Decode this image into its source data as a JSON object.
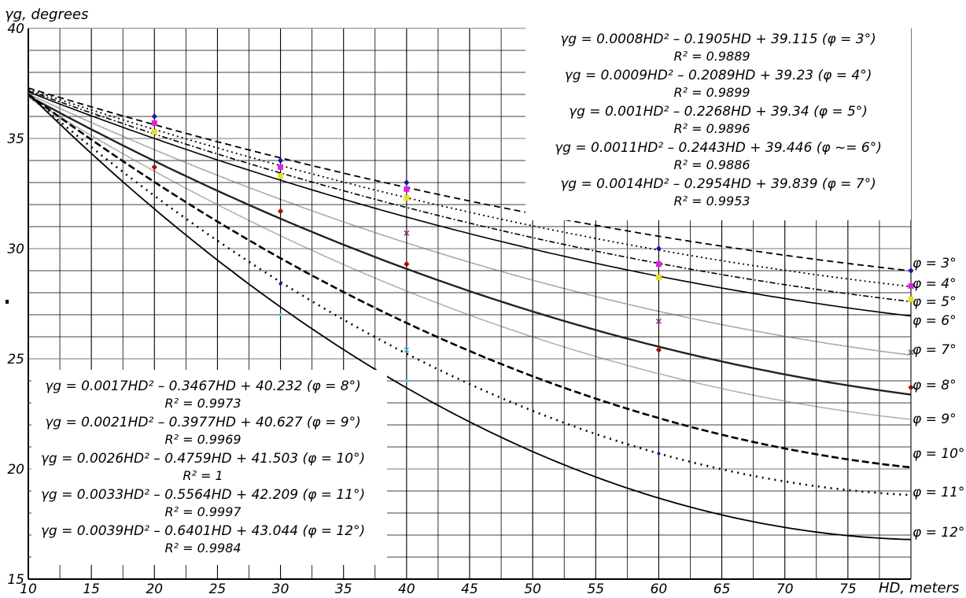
{
  "chart_data": {
    "type": "line",
    "ylabel": "γg, degrees",
    "xlabel": "HD, meters",
    "xlim": [
      10,
      80
    ],
    "ylim": [
      15,
      40
    ],
    "x_ticks": [
      "10",
      "15",
      "20",
      "25",
      "30",
      "35",
      "40",
      "45",
      "50",
      "55",
      "60",
      "65",
      "70",
      "75"
    ],
    "y_ticks": [
      "15",
      "20",
      "25",
      "30",
      "35",
      "40"
    ],
    "grid": true,
    "series": [
      {
        "name": "φ = 3°",
        "label": "φ = 3°",
        "a": 0.0008,
        "b": -0.1905,
        "c": 39.115,
        "dash": "8 5",
        "width": 1.8,
        "color": "#000000"
      },
      {
        "name": "φ = 4°",
        "label": "φ = 4°",
        "a": 0.0009,
        "b": -0.2089,
        "c": 39.23,
        "dash": "2 4",
        "width": 1.8,
        "color": "#000000"
      },
      {
        "name": "φ = 5°",
        "label": "φ = 5°",
        "a": 0.001,
        "b": -0.2268,
        "c": 39.34,
        "dash": "7 3 2 3",
        "width": 1.6,
        "color": "#000000"
      },
      {
        "name": "φ = 6°",
        "label": "φ = 6°",
        "a": 0.0011,
        "b": -0.2443,
        "c": 39.446,
        "dash": "",
        "width": 1.6,
        "color": "#000000"
      },
      {
        "name": "φ = 7°",
        "label": "φ = 7°",
        "a": 0.0014,
        "b": -0.2954,
        "c": 39.839,
        "dash": "1 1",
        "width": 1.6,
        "color": "#555555"
      },
      {
        "name": "φ = 8°",
        "label": "φ = 8°",
        "a": 0.0017,
        "b": -0.3467,
        "c": 40.232,
        "dash": "",
        "width": 2.4,
        "color": "#222222"
      },
      {
        "name": "φ = 9°",
        "label": "φ = 9°",
        "a": 0.0021,
        "b": -0.3977,
        "c": 40.627,
        "dash": "1 1",
        "width": 1.6,
        "color": "#666666"
      },
      {
        "name": "φ = 10°",
        "label": "φ = 10°",
        "a": 0.0026,
        "b": -0.4759,
        "c": 41.503,
        "dash": "9 4",
        "width": 2.6,
        "color": "#000000"
      },
      {
        "name": "φ = 11°",
        "label": "φ = 11°",
        "a": 0.0033,
        "b": -0.5564,
        "c": 42.209,
        "dash": "2 6",
        "width": 2.6,
        "color": "#000000"
      },
      {
        "name": "φ = 12°",
        "label": "φ = 12°",
        "a": 0.0039,
        "b": -0.6401,
        "c": 43.044,
        "dash": "",
        "width": 1.8,
        "color": "#000000"
      }
    ],
    "markers": [
      {
        "x": 20,
        "y": 36.0,
        "color": "#1a1aa0",
        "shape": "diamond"
      },
      {
        "x": 20,
        "y": 35.7,
        "color": "#e020e0",
        "shape": "square"
      },
      {
        "x": 20,
        "y": 35.3,
        "color": "#e8e020",
        "shape": "square"
      },
      {
        "x": 20,
        "y": 33.7,
        "color": "#a01010",
        "shape": "diamond"
      },
      {
        "x": 30,
        "y": 34.0,
        "color": "#1a1aa0",
        "shape": "diamond"
      },
      {
        "x": 30,
        "y": 33.7,
        "color": "#e020e0",
        "shape": "square"
      },
      {
        "x": 30,
        "y": 33.3,
        "color": "#e8e020",
        "shape": "square"
      },
      {
        "x": 30,
        "y": 31.7,
        "color": "#a01010",
        "shape": "diamond"
      },
      {
        "x": 30,
        "y": 28.4,
        "color": "#1a1aa0",
        "shape": "dot"
      },
      {
        "x": 30,
        "y": 27.0,
        "color": "#40c0e0",
        "shape": "dot"
      },
      {
        "x": 40,
        "y": 33.0,
        "color": "#1a1aa0",
        "shape": "diamond"
      },
      {
        "x": 40,
        "y": 32.7,
        "color": "#e020e0",
        "shape": "square"
      },
      {
        "x": 40,
        "y": 32.3,
        "color": "#e8e020",
        "shape": "square"
      },
      {
        "x": 40,
        "y": 30.7,
        "color": "#803080",
        "shape": "cross"
      },
      {
        "x": 40,
        "y": 29.3,
        "color": "#a01010",
        "shape": "diamond"
      },
      {
        "x": 40,
        "y": 25.4,
        "color": "#40c0e0",
        "shape": "cross"
      },
      {
        "x": 40,
        "y": 24.0,
        "color": "#40c0e0",
        "shape": "dot"
      },
      {
        "x": 60,
        "y": 30.0,
        "color": "#1a1aa0",
        "shape": "diamond"
      },
      {
        "x": 60,
        "y": 29.3,
        "color": "#e020e0",
        "shape": "square"
      },
      {
        "x": 60,
        "y": 28.7,
        "color": "#e8e020",
        "shape": "square"
      },
      {
        "x": 60,
        "y": 26.7,
        "color": "#803080",
        "shape": "cross"
      },
      {
        "x": 60,
        "y": 25.4,
        "color": "#a01010",
        "shape": "diamond"
      },
      {
        "x": 60,
        "y": 20.7,
        "color": "#1a1aa0",
        "shape": "dot"
      },
      {
        "x": 80,
        "y": 29.0,
        "color": "#1a1aa0",
        "shape": "diamond"
      },
      {
        "x": 80,
        "y": 28.3,
        "color": "#e020e0",
        "shape": "square"
      },
      {
        "x": 80,
        "y": 27.7,
        "color": "#e8e020",
        "shape": "square"
      },
      {
        "x": 80,
        "y": 25.3,
        "color": "#803080",
        "shape": "cross"
      },
      {
        "x": 80,
        "y": 23.7,
        "color": "#a01010",
        "shape": "diamond"
      }
    ],
    "equations_top": [
      {
        "eq": "γg = 0.0008HD² – 0.1905HD + 39.115 (φ = 3°)",
        "r2": "R² = 0.9889"
      },
      {
        "eq": "γg = 0.0009HD² – 0.2089HD + 39.23 (φ = 4°)",
        "r2": "R² = 0.9899"
      },
      {
        "eq": "γg = 0.001HD² – 0.2268HD + 39.34 (φ = 5°)",
        "r2": "R² = 0.9896"
      },
      {
        "eq": "γg = 0.0011HD² – 0.2443HD + 39.446 (φ ~= 6°)",
        "r2": "R² = 0.9886"
      },
      {
        "eq": "γg = 0.0014HD² – 0.2954HD + 39.839 (φ = 7°)",
        "r2": "R² = 0.9953"
      }
    ],
    "equations_bottom": [
      {
        "eq": "γg = 0.0017HD² – 0.3467HD + 40.232 (φ = 8°)",
        "r2": "R² = 0.9973"
      },
      {
        "eq": "γg = 0.0021HD² – 0.3977HD + 40.627 (φ = 9°)",
        "r2": "R² = 0.9969"
      },
      {
        "eq": "γg = 0.0026HD² – 0.4759HD + 41.503 (φ = 10°)",
        "r2": "R² = 1"
      },
      {
        "eq": "γg = 0.0033HD² – 0.5564HD + 42.209 (φ = 11°)",
        "r2": "R² = 0.9997"
      },
      {
        "eq": "γg = 0.0039HD² – 0.6401HD + 43.044 (φ = 12°)",
        "r2": "R² = 0.9984"
      }
    ]
  }
}
